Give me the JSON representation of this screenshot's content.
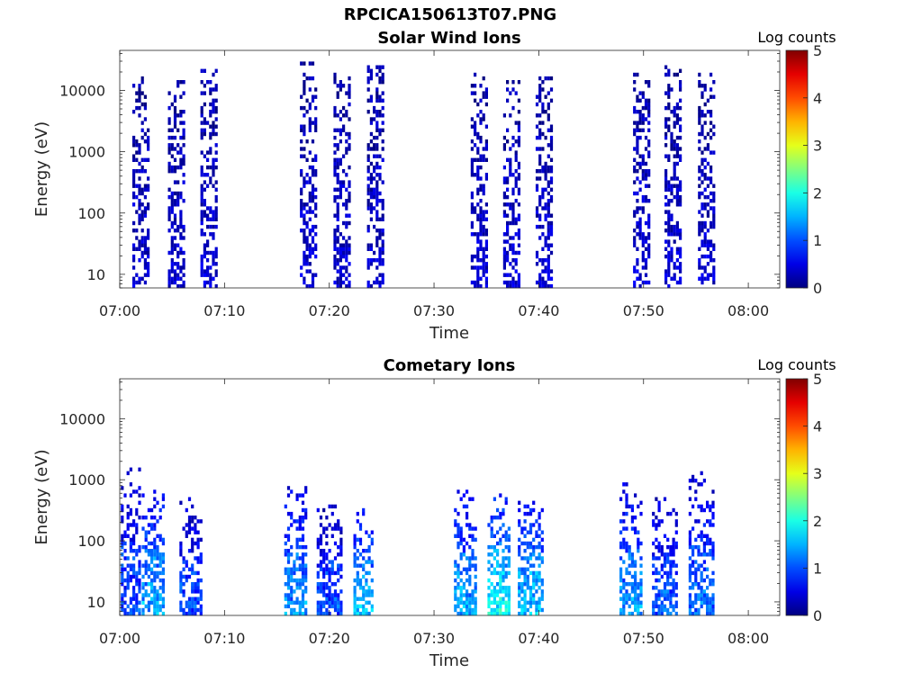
{
  "page": {
    "title": "RPCICA150613T07.PNG"
  },
  "chart_data": [
    {
      "type": "heatmap",
      "title": "Solar Wind Ions",
      "xlabel": "Time",
      "ylabel": "Energy (eV)",
      "colorbar_label": "Log counts",
      "xticks": [
        "07:00",
        "07:10",
        "07:20",
        "07:30",
        "07:40",
        "07:50",
        "08:00"
      ],
      "xlim_minutes": [
        0,
        63
      ],
      "yticks": [
        "10",
        "100",
        "1000",
        "10000"
      ],
      "ylim": [
        6,
        45000
      ],
      "y_scale": "log",
      "colorbar_ticks": [
        "0",
        "1",
        "2",
        "3",
        "4",
        "5"
      ],
      "colorbar_range": [
        0,
        5
      ],
      "colormap": "jet",
      "bursts": [
        {
          "center_min": 2.0,
          "width_min": 1.6,
          "emin": 6,
          "emax": 20000,
          "level": 0.4
        },
        {
          "center_min": 5.3,
          "width_min": 1.4,
          "emin": 6,
          "emax": 15000,
          "level": 0.4
        },
        {
          "center_min": 8.5,
          "width_min": 1.6,
          "emin": 6,
          "emax": 25000,
          "level": 0.4
        },
        {
          "center_min": 18.0,
          "width_min": 1.6,
          "emin": 6,
          "emax": 30000,
          "level": 0.4
        },
        {
          "center_min": 21.2,
          "width_min": 1.6,
          "emin": 6,
          "emax": 20000,
          "level": 0.4
        },
        {
          "center_min": 24.4,
          "width_min": 1.6,
          "emin": 6,
          "emax": 25000,
          "level": 0.4
        },
        {
          "center_min": 34.3,
          "width_min": 1.6,
          "emin": 6,
          "emax": 20000,
          "level": 0.4
        },
        {
          "center_min": 37.4,
          "width_min": 1.6,
          "emin": 6,
          "emax": 20000,
          "level": 0.4
        },
        {
          "center_min": 40.5,
          "width_min": 1.6,
          "emin": 6,
          "emax": 20000,
          "level": 0.4
        },
        {
          "center_min": 49.8,
          "width_min": 1.6,
          "emin": 6,
          "emax": 20000,
          "level": 0.4
        },
        {
          "center_min": 52.8,
          "width_min": 1.6,
          "emin": 6,
          "emax": 25000,
          "level": 0.4
        },
        {
          "center_min": 56.0,
          "width_min": 1.6,
          "emin": 6,
          "emax": 20000,
          "level": 0.4
        }
      ]
    },
    {
      "type": "heatmap",
      "title": "Cometary Ions",
      "xlabel": "Time",
      "ylabel": "Energy (eV)",
      "colorbar_label": "Log counts",
      "xticks": [
        "07:00",
        "07:10",
        "07:20",
        "07:30",
        "07:40",
        "07:50",
        "08:00"
      ],
      "xlim_minutes": [
        0,
        63
      ],
      "yticks": [
        "10",
        "100",
        "1000",
        "10000"
      ],
      "ylim": [
        6,
        45000
      ],
      "y_scale": "log",
      "colorbar_ticks": [
        "0",
        "1",
        "2",
        "3",
        "4",
        "5"
      ],
      "colorbar_range": [
        0,
        5
      ],
      "colormap": "jet",
      "bursts": [
        {
          "center_min": 1.0,
          "width_min": 1.8,
          "emin": 6,
          "emax": 1500,
          "level": 0.8
        },
        {
          "center_min": 3.2,
          "width_min": 2.2,
          "emin": 6,
          "emax": 800,
          "level": 1.3
        },
        {
          "center_min": 6.8,
          "width_min": 2.2,
          "emin": 6,
          "emax": 500,
          "level": 0.8
        },
        {
          "center_min": 16.8,
          "width_min": 2.2,
          "emin": 6,
          "emax": 800,
          "level": 1.2
        },
        {
          "center_min": 20.0,
          "width_min": 2.4,
          "emin": 6,
          "emax": 400,
          "level": 0.8
        },
        {
          "center_min": 23.2,
          "width_min": 1.8,
          "emin": 6,
          "emax": 400,
          "level": 1.4
        },
        {
          "center_min": 33.0,
          "width_min": 2.2,
          "emin": 6,
          "emax": 700,
          "level": 1.3
        },
        {
          "center_min": 36.2,
          "width_min": 2.2,
          "emin": 6,
          "emax": 800,
          "level": 1.7
        },
        {
          "center_min": 39.2,
          "width_min": 2.4,
          "emin": 6,
          "emax": 700,
          "level": 1.4
        },
        {
          "center_min": 48.8,
          "width_min": 2.2,
          "emin": 6,
          "emax": 900,
          "level": 1.2
        },
        {
          "center_min": 52.0,
          "width_min": 2.4,
          "emin": 6,
          "emax": 500,
          "level": 0.9
        },
        {
          "center_min": 55.5,
          "width_min": 2.4,
          "emin": 6,
          "emax": 1300,
          "level": 1.0
        }
      ]
    }
  ]
}
